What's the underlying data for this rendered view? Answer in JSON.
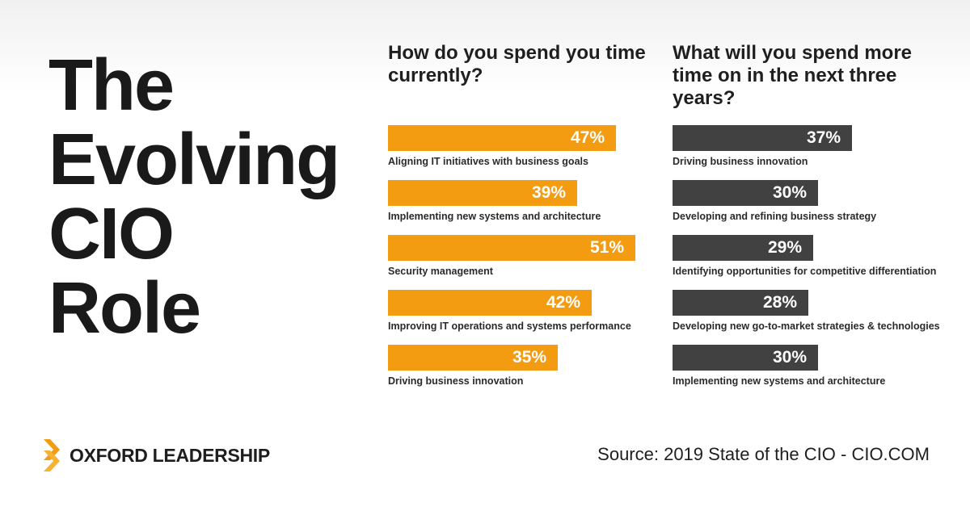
{
  "title_lines": [
    "The",
    "Evolving",
    "CIO",
    "Role"
  ],
  "colors": {
    "current": "#f39c12",
    "future": "#414141"
  },
  "brand": {
    "name": "OXFORD LEADERSHIP",
    "icon": "chevron-logo-icon"
  },
  "source": "Source: 2019 State of the CIO - CIO.COM",
  "chart_data": [
    {
      "type": "bar",
      "orientation": "horizontal",
      "title": "How do you spend you time currently?",
      "categories": [
        "Aligning IT initiatives with business goals",
        "Implementing new systems and architecture",
        "Security management",
        "Improving IT operations and systems performance",
        "Driving business innovation"
      ],
      "values": [
        47,
        39,
        51,
        42,
        35
      ],
      "value_labels": [
        "47%",
        "39%",
        "51%",
        "42%",
        "35%"
      ],
      "unit": "%"
    },
    {
      "type": "bar",
      "orientation": "horizontal",
      "title": "What will you spend more time on in the next three years?",
      "categories": [
        "Driving business innovation",
        "Developing and refining business strategy",
        "Identifying opportunities for competitive differentiation",
        "Developing new go-to-market strategies & technologies",
        "Implementing new systems and architecture"
      ],
      "values": [
        37,
        30,
        29,
        28,
        30
      ],
      "value_labels": [
        "37%",
        "30%",
        "29%",
        "28%",
        "30%"
      ],
      "unit": "%"
    }
  ]
}
